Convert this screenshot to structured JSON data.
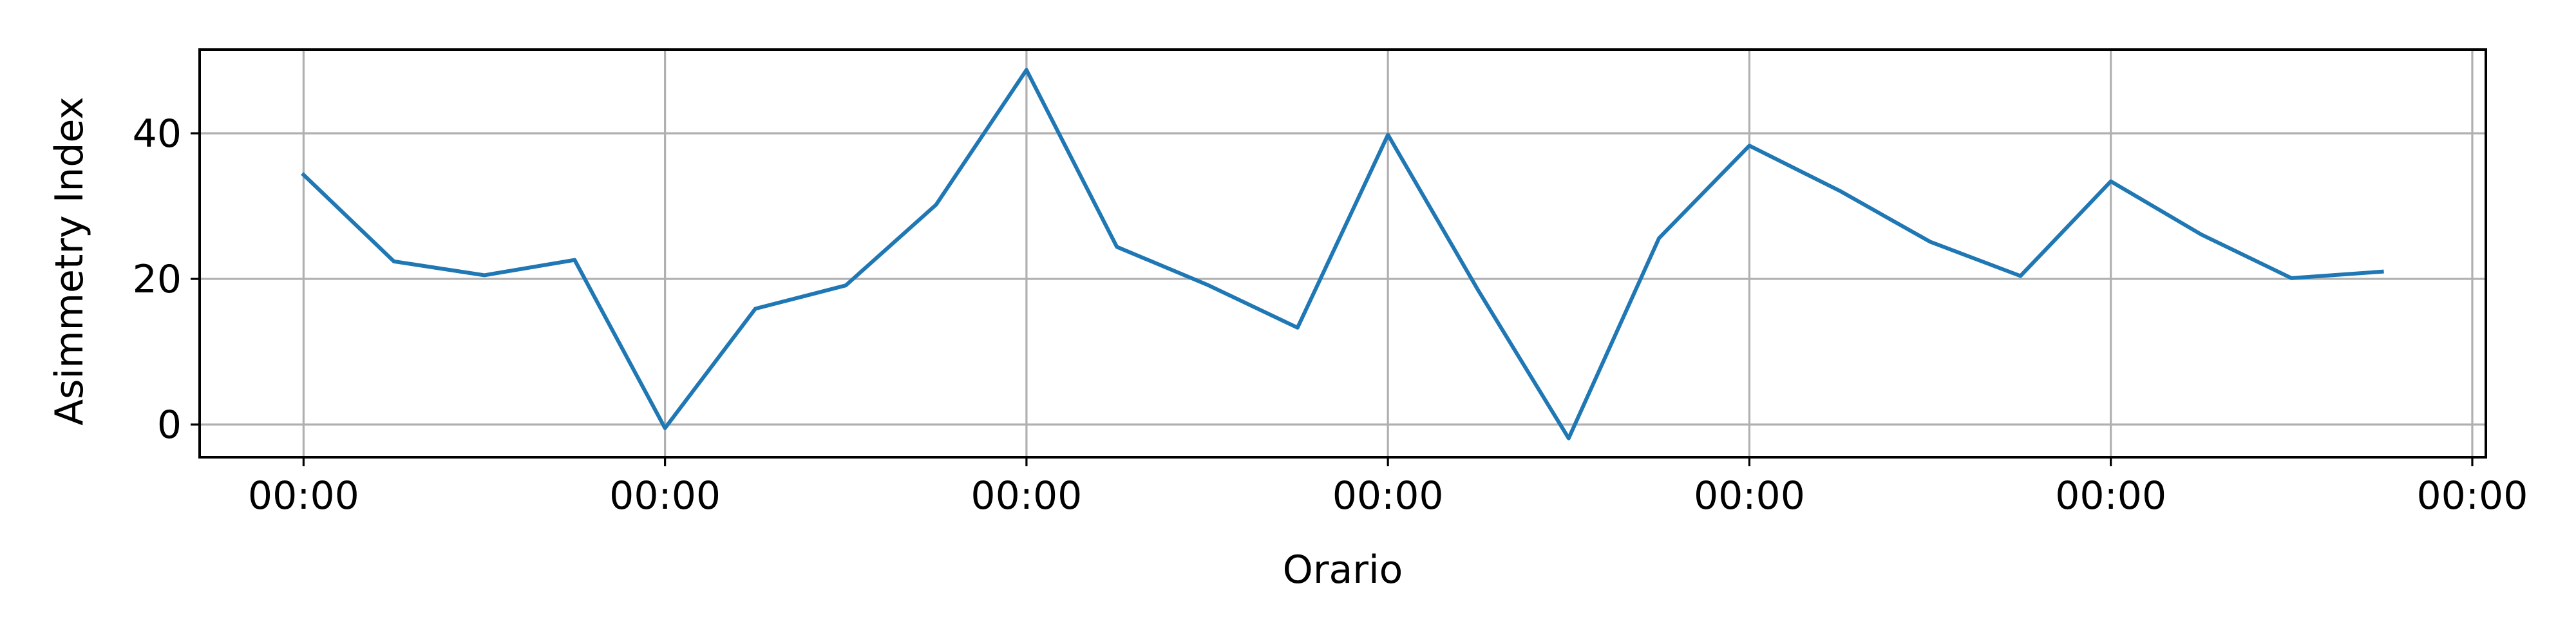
{
  "chart_data": {
    "type": "line",
    "title": "",
    "xlabel": "Orario",
    "ylabel": "Asimmetry Index",
    "x_tick_labels": [
      "00:00",
      "00:00",
      "00:00",
      "00:00",
      "00:00",
      "00:00",
      "00:00"
    ],
    "y_ticks": [
      0,
      20,
      40
    ],
    "ylim": [
      -4.5,
      51.5
    ],
    "xlim": [
      -1.15,
      24.15
    ],
    "grid": true,
    "legend": "none",
    "series": [
      {
        "color": "#1f77b4",
        "x": [
          0,
          1,
          2,
          3,
          4,
          5,
          6,
          7,
          8,
          9,
          10,
          11,
          12,
          13,
          14,
          15,
          16,
          17,
          18,
          19,
          20,
          21,
          22,
          23
        ],
        "values": [
          34.3,
          22.4,
          20.5,
          22.6,
          -0.5,
          15.9,
          19.1,
          30.2,
          48.7,
          24.4,
          19.2,
          13.3,
          39.8,
          18.4,
          -1.9,
          25.6,
          38.3,
          32.1,
          25.1,
          20.4,
          33.4,
          26.1,
          20.1,
          21.0
        ]
      }
    ]
  }
}
